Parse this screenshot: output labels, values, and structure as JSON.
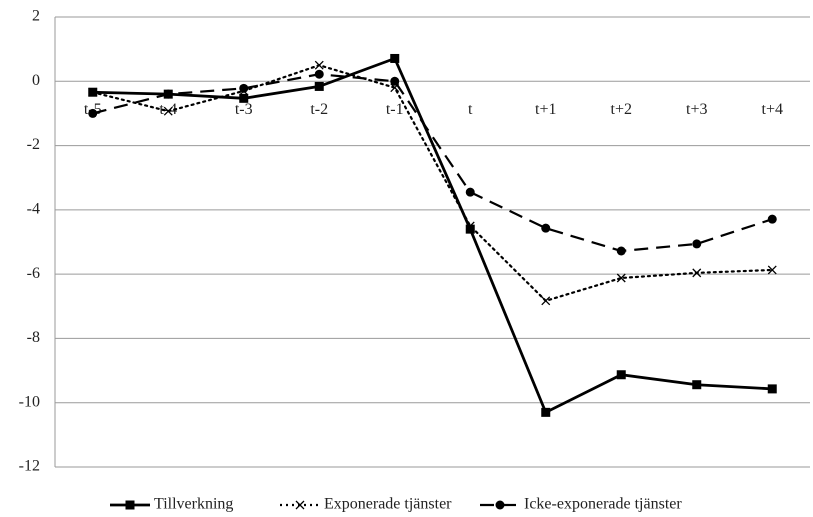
{
  "chart_data": {
    "type": "line",
    "categories": [
      "t-5",
      "t-4",
      "t-3",
      "t-2",
      "t-1",
      "t",
      "t+1",
      "t+2",
      "t+3",
      "t+4"
    ],
    "series": [
      {
        "name": "Tillverkning",
        "color": "#000000",
        "marker": "square",
        "dash": "solid",
        "values": [
          -0.34,
          -0.4,
          -0.53,
          -0.16,
          0.71,
          -4.6,
          -10.3,
          -9.13,
          -9.44,
          -9.57
        ]
      },
      {
        "name": "Exponerade tjänster",
        "color": "#000000",
        "marker": "x",
        "dash": "dotted",
        "values": [
          -0.34,
          -0.93,
          -0.3,
          0.5,
          -0.2,
          -4.5,
          -6.83,
          -6.12,
          -5.96,
          -5.87
        ]
      },
      {
        "name": "Icke-exponerade tjänster",
        "color": "#000000",
        "marker": "circle",
        "dash": "dashed",
        "values": [
          -1.0,
          -0.4,
          -0.22,
          0.22,
          0.0,
          -3.45,
          -4.57,
          -5.28,
          -5.06,
          -4.29
        ]
      }
    ],
    "ylim": [
      -12,
      2
    ],
    "yticks": [
      -12,
      -10,
      -8,
      -6,
      -4,
      -2,
      0,
      2
    ],
    "grid": true,
    "legend": "bottom"
  }
}
